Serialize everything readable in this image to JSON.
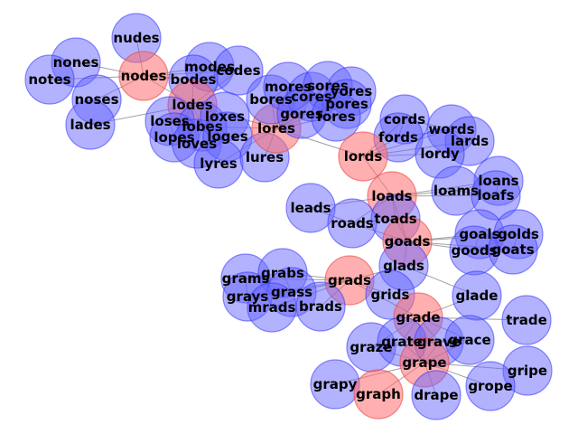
{
  "graph": {
    "type": "network",
    "nodes": [
      {
        "id": "nudes",
        "color": "blue"
      },
      {
        "id": "nones",
        "color": "blue"
      },
      {
        "id": "notes",
        "color": "blue"
      },
      {
        "id": "nodes",
        "color": "red"
      },
      {
        "id": "noses",
        "color": "blue"
      },
      {
        "id": "lades",
        "color": "blue"
      },
      {
        "id": "modes",
        "color": "blue"
      },
      {
        "id": "codes",
        "color": "blue"
      },
      {
        "id": "bodes",
        "color": "blue"
      },
      {
        "id": "lodes",
        "color": "red"
      },
      {
        "id": "loses",
        "color": "blue"
      },
      {
        "id": "lobes",
        "color": "blue"
      },
      {
        "id": "lopes",
        "color": "blue"
      },
      {
        "id": "loves",
        "color": "blue"
      },
      {
        "id": "loxes",
        "color": "blue"
      },
      {
        "id": "loges",
        "color": "blue"
      },
      {
        "id": "lyres",
        "color": "blue"
      },
      {
        "id": "lures",
        "color": "blue"
      },
      {
        "id": "lores",
        "color": "red"
      },
      {
        "id": "bores",
        "color": "blue"
      },
      {
        "id": "mores",
        "color": "blue"
      },
      {
        "id": "cores",
        "color": "blue"
      },
      {
        "id": "sores",
        "color": "blue"
      },
      {
        "id": "gores",
        "color": "blue"
      },
      {
        "id": "yores",
        "color": "blue"
      },
      {
        "id": "pores",
        "color": "blue"
      },
      {
        "id": "fores",
        "color": "blue"
      },
      {
        "id": "cords",
        "color": "blue"
      },
      {
        "id": "fords",
        "color": "blue"
      },
      {
        "id": "words",
        "color": "blue"
      },
      {
        "id": "lards",
        "color": "blue"
      },
      {
        "id": "lordy",
        "color": "blue"
      },
      {
        "id": "lords",
        "color": "red"
      },
      {
        "id": "loans",
        "color": "blue"
      },
      {
        "id": "loams",
        "color": "blue"
      },
      {
        "id": "loafs",
        "color": "blue"
      },
      {
        "id": "loads",
        "color": "red"
      },
      {
        "id": "leads",
        "color": "blue"
      },
      {
        "id": "roads",
        "color": "blue"
      },
      {
        "id": "toads",
        "color": "blue"
      },
      {
        "id": "goads",
        "color": "red"
      },
      {
        "id": "goals",
        "color": "blue"
      },
      {
        "id": "golds",
        "color": "blue"
      },
      {
        "id": "goods",
        "color": "blue"
      },
      {
        "id": "goats",
        "color": "blue"
      },
      {
        "id": "glads",
        "color": "blue"
      },
      {
        "id": "grams",
        "color": "blue"
      },
      {
        "id": "grabs",
        "color": "blue"
      },
      {
        "id": "grays",
        "color": "blue"
      },
      {
        "id": "grass",
        "color": "blue"
      },
      {
        "id": "grads",
        "color": "red"
      },
      {
        "id": "mrads",
        "color": "blue"
      },
      {
        "id": "brads",
        "color": "blue"
      },
      {
        "id": "grids",
        "color": "blue"
      },
      {
        "id": "glade",
        "color": "blue"
      },
      {
        "id": "grade",
        "color": "red"
      },
      {
        "id": "trade",
        "color": "blue"
      },
      {
        "id": "graze",
        "color": "blue"
      },
      {
        "id": "grate",
        "color": "blue"
      },
      {
        "id": "grave",
        "color": "blue"
      },
      {
        "id": "grace",
        "color": "blue"
      },
      {
        "id": "grape",
        "color": "red"
      },
      {
        "id": "gripe",
        "color": "blue"
      },
      {
        "id": "grapy",
        "color": "blue"
      },
      {
        "id": "graph",
        "color": "red"
      },
      {
        "id": "drape",
        "color": "blue"
      },
      {
        "id": "grope",
        "color": "blue"
      }
    ],
    "edges": [
      [
        "nudes",
        "nodes"
      ],
      [
        "nones",
        "nodes"
      ],
      [
        "notes",
        "nodes"
      ],
      [
        "noses",
        "nodes"
      ],
      [
        "nodes",
        "lodes"
      ],
      [
        "nodes",
        "bodes"
      ],
      [
        "nodes",
        "modes"
      ],
      [
        "nodes",
        "codes"
      ],
      [
        "lades",
        "lodes"
      ],
      [
        "modes",
        "codes"
      ],
      [
        "modes",
        "bodes"
      ],
      [
        "codes",
        "bodes"
      ],
      [
        "codes",
        "lodes"
      ],
      [
        "bodes",
        "lodes"
      ],
      [
        "lodes",
        "loses"
      ],
      [
        "lodes",
        "lobes"
      ],
      [
        "lodes",
        "lopes"
      ],
      [
        "lodes",
        "loves"
      ],
      [
        "lodes",
        "loxes"
      ],
      [
        "lodes",
        "loges"
      ],
      [
        "lodes",
        "lores"
      ],
      [
        "loses",
        "lobes"
      ],
      [
        "loses",
        "lopes"
      ],
      [
        "loses",
        "loves"
      ],
      [
        "lobes",
        "lopes"
      ],
      [
        "lobes",
        "loves"
      ],
      [
        "lobes",
        "loxes"
      ],
      [
        "lobes",
        "loges"
      ],
      [
        "lopes",
        "loves"
      ],
      [
        "loves",
        "loges"
      ],
      [
        "loxes",
        "loges"
      ],
      [
        "lobes",
        "lores"
      ],
      [
        "lyres",
        "lores"
      ],
      [
        "lures",
        "lores"
      ],
      [
        "lores",
        "bores"
      ],
      [
        "lores",
        "mores"
      ],
      [
        "lores",
        "cores"
      ],
      [
        "lores",
        "sores"
      ],
      [
        "lores",
        "gores"
      ],
      [
        "lores",
        "yores"
      ],
      [
        "lores",
        "pores"
      ],
      [
        "lores",
        "fores"
      ],
      [
        "lores",
        "lords"
      ],
      [
        "bores",
        "mores"
      ],
      [
        "bores",
        "cores"
      ],
      [
        "bores",
        "gores"
      ],
      [
        "mores",
        "cores"
      ],
      [
        "mores",
        "sores"
      ],
      [
        "cores",
        "sores"
      ],
      [
        "cores",
        "gores"
      ],
      [
        "cores",
        "pores"
      ],
      [
        "cores",
        "fores"
      ],
      [
        "sores",
        "yores"
      ],
      [
        "sores",
        "pores"
      ],
      [
        "gores",
        "fores"
      ],
      [
        "yores",
        "pores"
      ],
      [
        "pores",
        "fores"
      ],
      [
        "lords",
        "cords"
      ],
      [
        "lords",
        "fords"
      ],
      [
        "lords",
        "words"
      ],
      [
        "lords",
        "lards"
      ],
      [
        "lords",
        "lordy"
      ],
      [
        "lords",
        "loads"
      ],
      [
        "cords",
        "fords"
      ],
      [
        "cords",
        "words"
      ],
      [
        "fords",
        "words"
      ],
      [
        "words",
        "lards"
      ],
      [
        "loads",
        "loans"
      ],
      [
        "loads",
        "loams"
      ],
      [
        "loads",
        "loafs"
      ],
      [
        "loads",
        "leads"
      ],
      [
        "loads",
        "roads"
      ],
      [
        "loads",
        "toads"
      ],
      [
        "loads",
        "goads"
      ],
      [
        "loans",
        "loams"
      ],
      [
        "loans",
        "loafs"
      ],
      [
        "loams",
        "loafs"
      ],
      [
        "leads",
        "roads"
      ],
      [
        "roads",
        "toads"
      ],
      [
        "toads",
        "goads"
      ],
      [
        "roads",
        "goads"
      ],
      [
        "goads",
        "goals"
      ],
      [
        "goads",
        "golds"
      ],
      [
        "goads",
        "goods"
      ],
      [
        "goads",
        "goats"
      ],
      [
        "goads",
        "glads"
      ],
      [
        "goals",
        "golds"
      ],
      [
        "goals",
        "goods"
      ],
      [
        "goals",
        "goats"
      ],
      [
        "golds",
        "goods"
      ],
      [
        "golds",
        "goats"
      ],
      [
        "goods",
        "goats"
      ],
      [
        "glads",
        "grads"
      ],
      [
        "glads",
        "glade"
      ],
      [
        "grams",
        "grads"
      ],
      [
        "grabs",
        "grads"
      ],
      [
        "grays",
        "grads"
      ],
      [
        "grass",
        "grads"
      ],
      [
        "mrads",
        "grads"
      ],
      [
        "brads",
        "grads"
      ],
      [
        "grids",
        "grads"
      ],
      [
        "grads",
        "grade"
      ],
      [
        "grams",
        "grabs"
      ],
      [
        "grams",
        "grays"
      ],
      [
        "grams",
        "grass"
      ],
      [
        "grabs",
        "grays"
      ],
      [
        "grabs",
        "grass"
      ],
      [
        "grays",
        "grass"
      ],
      [
        "glade",
        "grade"
      ],
      [
        "grade",
        "trade"
      ],
      [
        "grade",
        "graze"
      ],
      [
        "grade",
        "grate"
      ],
      [
        "grade",
        "grave"
      ],
      [
        "grade",
        "grace"
      ],
      [
        "grade",
        "grape"
      ],
      [
        "graze",
        "grate"
      ],
      [
        "graze",
        "grave"
      ],
      [
        "graze",
        "grace"
      ],
      [
        "graze",
        "grape"
      ],
      [
        "grate",
        "grave"
      ],
      [
        "grate",
        "grace"
      ],
      [
        "grate",
        "grape"
      ],
      [
        "grave",
        "grace"
      ],
      [
        "grave",
        "grape"
      ],
      [
        "grace",
        "grape"
      ],
      [
        "grape",
        "gripe"
      ],
      [
        "grape",
        "grapy"
      ],
      [
        "grape",
        "graph"
      ],
      [
        "grape",
        "drape"
      ],
      [
        "grape",
        "grope"
      ]
    ]
  }
}
